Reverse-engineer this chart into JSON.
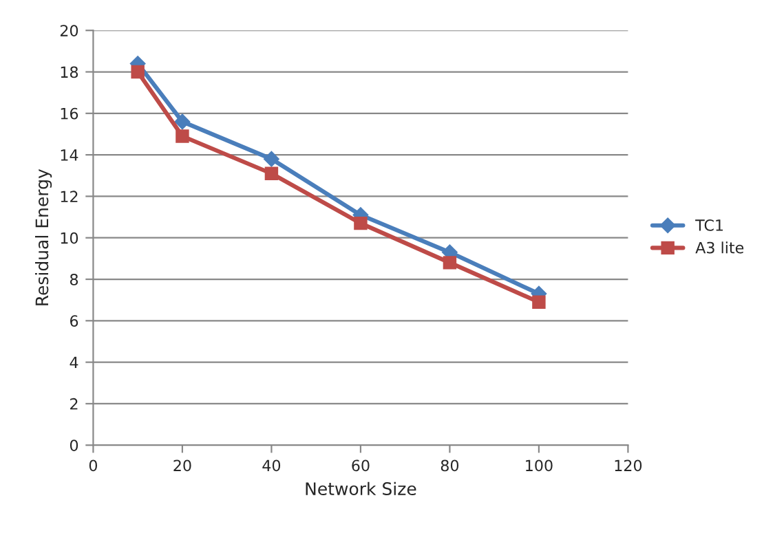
{
  "chart_data": {
    "type": "line",
    "xlabel": "Network Size",
    "ylabel": "Residual Energy",
    "x": [
      10,
      20,
      40,
      60,
      80,
      100
    ],
    "series": [
      {
        "name": "TC1",
        "color": "#4a7ebb",
        "marker": "diamond",
        "values": [
          18.4,
          15.6,
          13.8,
          11.1,
          9.3,
          7.3
        ]
      },
      {
        "name": "A3 lite",
        "color": "#be4b48",
        "marker": "square",
        "values": [
          18.0,
          14.9,
          13.1,
          10.7,
          8.8,
          6.9
        ]
      }
    ],
    "xlim": [
      0,
      120
    ],
    "xticks": [
      0,
      20,
      40,
      60,
      80,
      100,
      120
    ],
    "ylim": [
      0,
      20
    ],
    "yticks": [
      0,
      2,
      4,
      6,
      8,
      10,
      12,
      14,
      16,
      18,
      20
    ],
    "grid": "y",
    "legend": "right",
    "line_style": "solid"
  }
}
